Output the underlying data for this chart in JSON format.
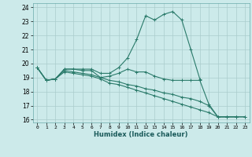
{
  "title": "",
  "xlabel": "Humidex (Indice chaleur)",
  "ylabel": "",
  "xlim": [
    -0.5,
    23.5
  ],
  "ylim": [
    15.8,
    24.3
  ],
  "yticks": [
    16,
    17,
    18,
    19,
    20,
    21,
    22,
    23,
    24
  ],
  "xticks": [
    0,
    1,
    2,
    3,
    4,
    5,
    6,
    7,
    8,
    9,
    10,
    11,
    12,
    13,
    14,
    15,
    16,
    17,
    18,
    19,
    20,
    21,
    22,
    23
  ],
  "background_color": "#cceaea",
  "grid_color": "#aacccc",
  "line_color": "#2a7a6a",
  "lines": [
    [
      19.7,
      18.8,
      18.9,
      19.6,
      19.6,
      19.6,
      19.6,
      19.3,
      19.3,
      19.7,
      20.4,
      21.7,
      23.4,
      23.1,
      23.5,
      23.7,
      23.1,
      21.0,
      18.9,
      null,
      null,
      null,
      null,
      null
    ],
    [
      19.7,
      18.8,
      18.9,
      19.6,
      19.6,
      19.5,
      19.5,
      19.0,
      19.1,
      19.3,
      19.6,
      19.4,
      19.4,
      19.1,
      18.9,
      18.8,
      18.8,
      18.8,
      18.8,
      17.1,
      16.2,
      16.2,
      16.2,
      null
    ],
    [
      19.7,
      18.8,
      18.9,
      19.5,
      19.4,
      19.3,
      19.2,
      19.0,
      18.8,
      18.7,
      18.5,
      18.4,
      18.2,
      18.1,
      17.9,
      17.8,
      17.6,
      17.5,
      17.3,
      17.0,
      16.2,
      16.2,
      16.2,
      16.2
    ],
    [
      19.7,
      18.8,
      18.9,
      19.4,
      19.3,
      19.2,
      19.1,
      18.9,
      18.6,
      18.5,
      18.3,
      18.1,
      17.9,
      17.7,
      17.5,
      17.3,
      17.1,
      16.9,
      16.7,
      16.5,
      16.2,
      16.2,
      16.2,
      16.2
    ]
  ]
}
